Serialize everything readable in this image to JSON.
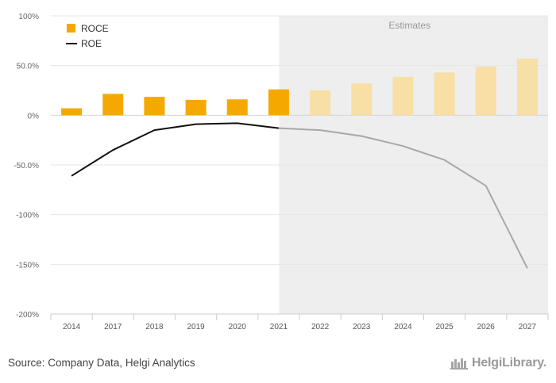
{
  "chart_data": {
    "type": "bar+line",
    "categories": [
      "2014",
      "2017",
      "2018",
      "2019",
      "2020",
      "2021",
      "2022",
      "2023",
      "2024",
      "2025",
      "2026",
      "2027"
    ],
    "series": [
      {
        "name": "ROCE",
        "type": "bar",
        "values": [
          7,
          21.5,
          18.5,
          15.5,
          16,
          26,
          25,
          32,
          38.5,
          43,
          49,
          57
        ],
        "color": "#f5a800",
        "estimate_color": "#f7dfa6"
      },
      {
        "name": "ROE",
        "type": "line",
        "values": [
          -61,
          -35,
          -15,
          -9,
          -8,
          -13,
          -15,
          -21,
          -31,
          -45,
          -71,
          -154
        ],
        "color": "#111111",
        "estimate_color": "#a8a8a8"
      }
    ],
    "estimates_from_index": 6,
    "estimates_label": "Estimates",
    "y_ticks": [
      100,
      50,
      0,
      -50,
      -100,
      -150,
      -200
    ],
    "y_tick_labels": [
      "100%",
      "50.0%",
      "0%",
      "-50.0%",
      "-100%",
      "-150%",
      "-200%"
    ],
    "ylim": [
      -200,
      100
    ],
    "legend_position": "top-left"
  },
  "footer": {
    "source": "Source: Company Data, Helgi Analytics",
    "brand": "HelgiLibrary."
  }
}
